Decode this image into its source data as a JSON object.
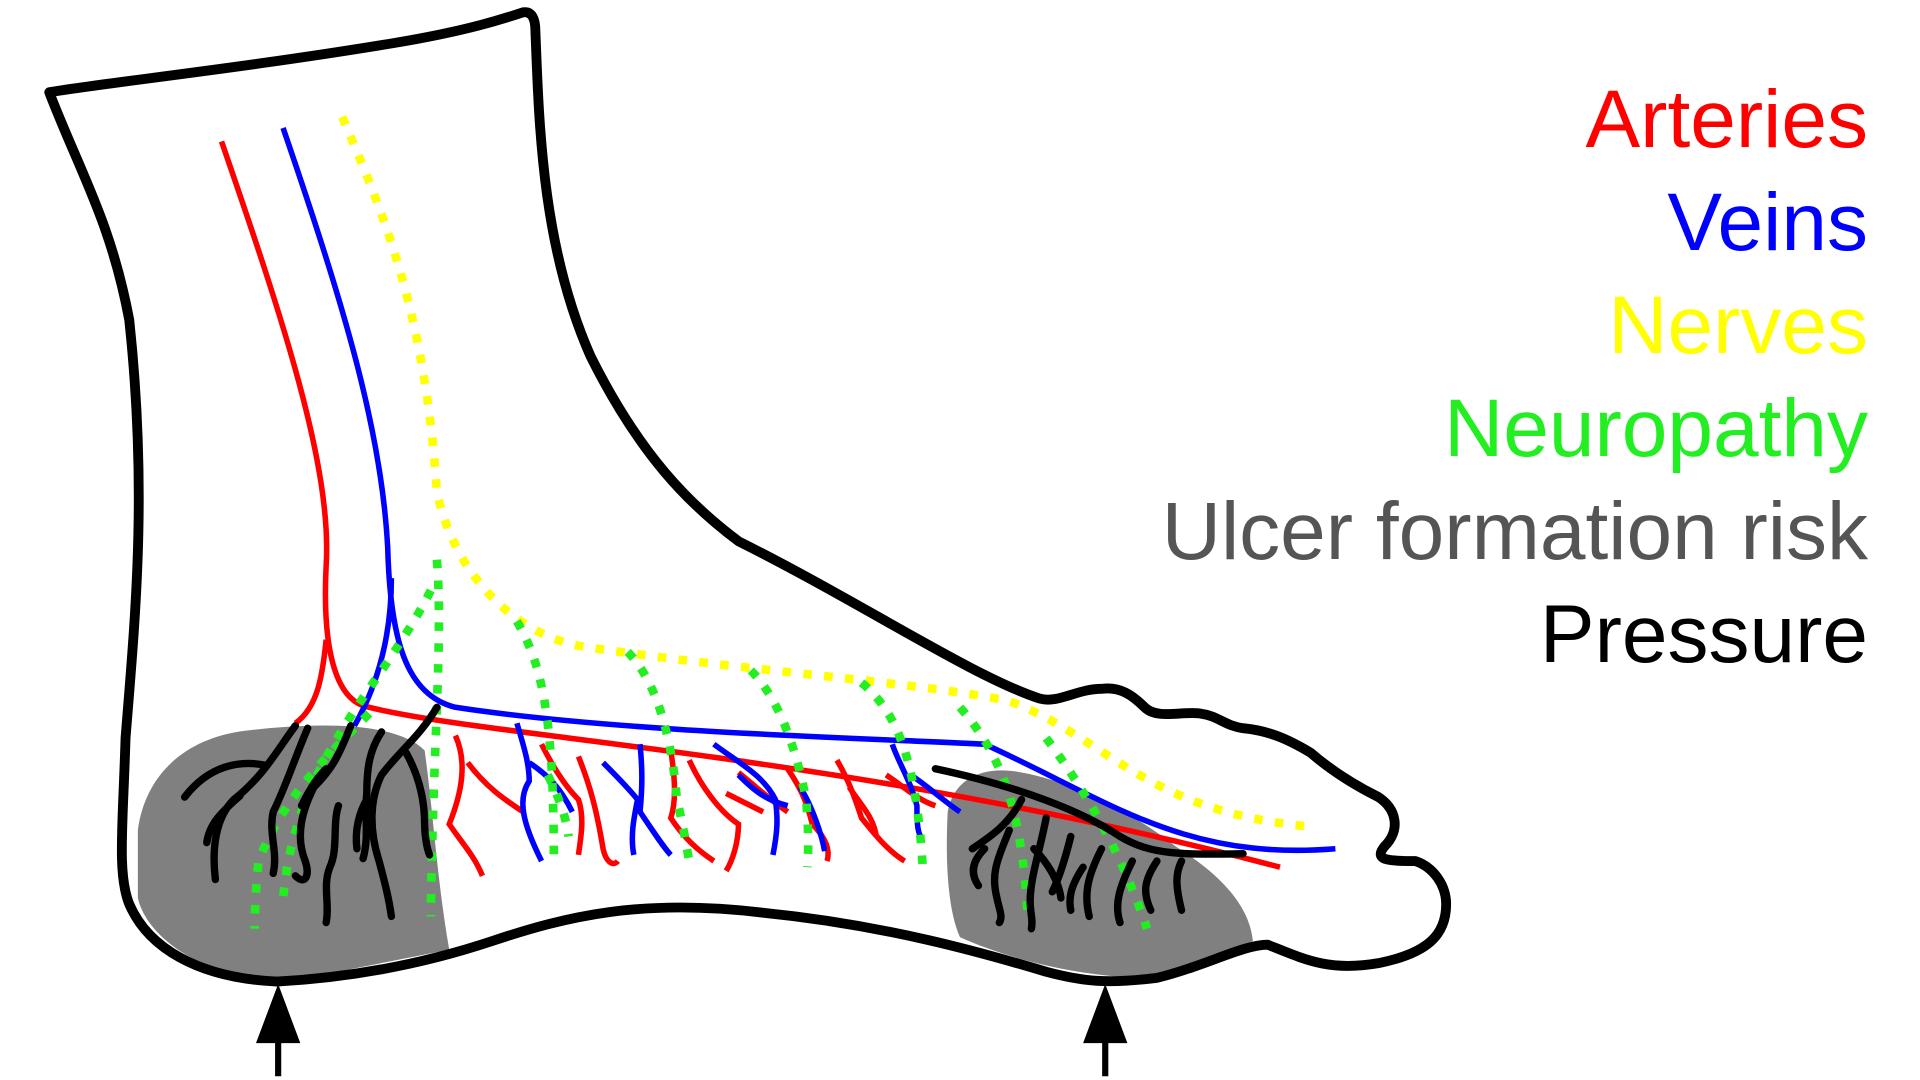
{
  "legend": {
    "arteries": {
      "label": "Arteries",
      "color": "#ff0000"
    },
    "veins": {
      "label": "Veins",
      "color": "#0000ff"
    },
    "nerves": {
      "label": "Nerves",
      "color": "#ffff00"
    },
    "neuropathy": {
      "label": "Neuropathy",
      "color": "#22ee22"
    },
    "ulcer": {
      "label": "Ulcer formation risk",
      "color": "#555555"
    },
    "pressure": {
      "label": "Pressure",
      "color": "#000000"
    }
  },
  "colors": {
    "outline": "#000000",
    "ulcer_zone_fill": "#808080",
    "background": "#ffffff"
  },
  "icons": [
    "heel-pressure-arrow",
    "forefoot-pressure-arrow"
  ]
}
